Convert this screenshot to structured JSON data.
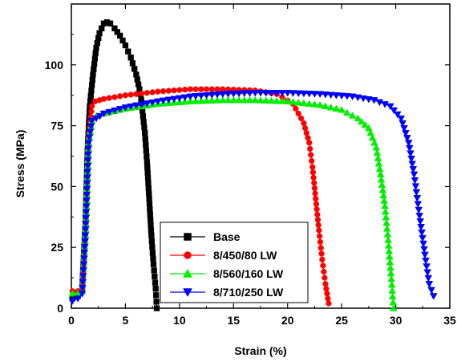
{
  "chart_data": {
    "type": "line",
    "title": "",
    "xlabel": "Strain (%)",
    "ylabel": "Stress (MPa)",
    "xlim": [
      0,
      35
    ],
    "ylim": [
      0,
      125
    ],
    "xticks": [
      0,
      5,
      10,
      15,
      20,
      25,
      30,
      35
    ],
    "yticks": [
      0,
      25,
      50,
      75,
      100
    ],
    "grid": false,
    "legend": "bottom-center",
    "series": [
      {
        "name": "Base",
        "color": "#000000",
        "marker": "square",
        "x": [
          0.1,
          0.6,
          1.0,
          1.3,
          1.5,
          1.7,
          2.0,
          2.3,
          2.6,
          3.0,
          3.3,
          3.6,
          4.0,
          4.5,
          5.0,
          5.5,
          6.0,
          6.4,
          6.8,
          7.0,
          7.2,
          7.4,
          7.6,
          7.8,
          7.9
        ],
        "y": [
          4,
          5,
          8,
          35,
          65,
          83,
          96,
          107,
          113,
          117,
          117.5,
          117,
          115,
          112,
          108,
          103,
          96,
          88,
          72,
          60,
          45,
          30,
          18,
          8,
          0
        ]
      },
      {
        "name": "8/450/80 LW",
        "color": "#ff0000",
        "marker": "circle",
        "x": [
          0.1,
          0.6,
          1.0,
          1.3,
          1.6,
          1.9,
          2.2,
          3,
          5,
          8,
          11,
          14,
          17,
          19,
          20.5,
          21.5,
          22.0,
          22.3,
          22.6,
          22.9,
          23.2,
          23.5,
          23.8
        ],
        "y": [
          7,
          7,
          8,
          30,
          70,
          83,
          85,
          86,
          87.5,
          89,
          90,
          90,
          89.5,
          88,
          84,
          76,
          68,
          58,
          45,
          32,
          20,
          10,
          2
        ]
      },
      {
        "name": "8/560/160 LW",
        "color": "#00ee00",
        "marker": "triangle-up",
        "x": [
          0.1,
          0.6,
          1.0,
          1.3,
          1.6,
          1.9,
          2.3,
          3,
          5,
          8,
          11,
          14,
          17,
          20,
          23,
          25,
          26.5,
          27.5,
          28.2,
          28.6,
          29.0,
          29.3,
          29.6,
          29.8
        ],
        "y": [
          6,
          6,
          7,
          30,
          68,
          77,
          79,
          80,
          82,
          84,
          85,
          85.5,
          85.5,
          85,
          83.5,
          81.5,
          78,
          74,
          66,
          55,
          42,
          28,
          12,
          0
        ]
      },
      {
        "name": "8/710/250 LW",
        "color": "#0000ff",
        "marker": "triangle-down",
        "x": [
          0.1,
          0.6,
          1.0,
          1.3,
          1.6,
          1.9,
          2.3,
          3,
          5,
          8,
          11,
          14,
          17,
          20,
          23,
          26,
          28,
          29.5,
          30.5,
          31.2,
          31.7,
          32.2,
          32.7,
          33.1,
          33.5
        ],
        "y": [
          3,
          4,
          6,
          30,
          68,
          77,
          78,
          80,
          82.5,
          85,
          87,
          88,
          88.5,
          88.5,
          88,
          87,
          85.5,
          83,
          78,
          68,
          55,
          38,
          22,
          10,
          5
        ]
      }
    ]
  }
}
